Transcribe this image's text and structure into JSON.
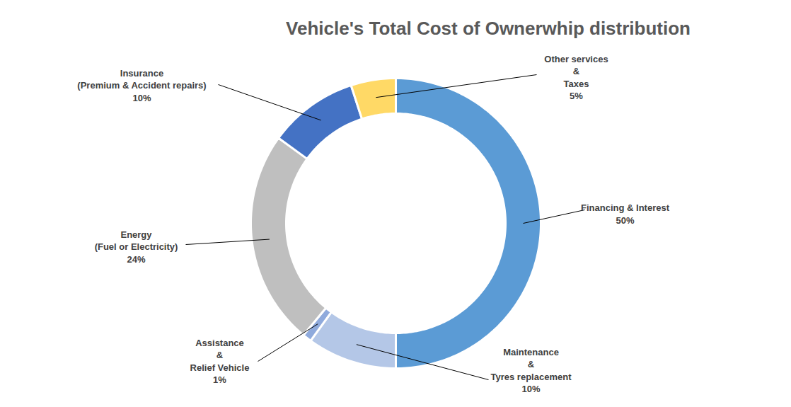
{
  "chart_data": {
    "type": "donut",
    "title": "Vehicle's Total Cost of Ownerwhip distribution",
    "categories": [
      "Financing & Interest",
      "Maintenance\n&\nTyres replacement",
      "Assistance\n&\nRelief Vehicle",
      "Energy\n(Fuel or Electricity)",
      "Insurance\n(Premium & Accident repairs)",
      "Other services\n&\nTaxes"
    ],
    "values": [
      50,
      10,
      1,
      24,
      10,
      5
    ],
    "value_labels": [
      "50%",
      "10%",
      "1%",
      "24%",
      "10%",
      "5%"
    ],
    "colors": [
      "#5b9bd5",
      "#b4c7e7",
      "#8faadc",
      "#bfbfbf",
      "#4472c4",
      "#ffd966"
    ],
    "data_labels": true
  }
}
